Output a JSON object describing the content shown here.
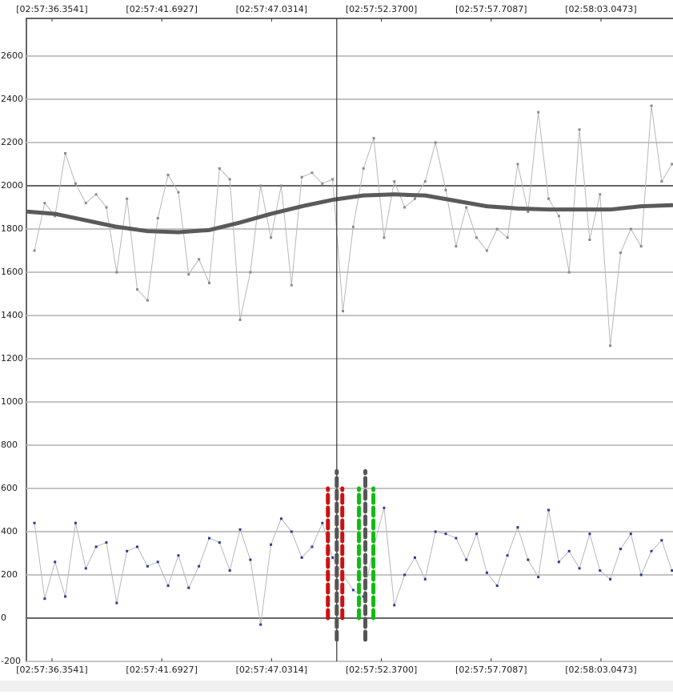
{
  "chart_data": {
    "type": "line",
    "xlim": [
      35.11,
      66.55
    ],
    "ylim": [
      -200,
      2774
    ],
    "xticks": [
      {
        "value": 36.3541,
        "label": "[02:57:36.3541]"
      },
      {
        "value": 41.6927,
        "label": "[02:57:41.6927]"
      },
      {
        "value": 47.0314,
        "label": "[02:57:47.0314]"
      },
      {
        "value": 52.37,
        "label": "[02:57:52.3700]"
      },
      {
        "value": 57.7087,
        "label": "[02:57:57.7087]"
      },
      {
        "value": 63.0473,
        "label": "[02:58:03.0473]"
      }
    ],
    "yticks": [
      -200,
      0,
      200,
      400,
      600,
      800,
      1000,
      1200,
      1400,
      1600,
      1800,
      2000,
      2200,
      2400,
      2600
    ],
    "grid": true,
    "highlight_lines": [
      0,
      2000
    ],
    "cursor_x": 50.2,
    "x": [
      35.5,
      36,
      36.5,
      37,
      37.5,
      38,
      38.5,
      39,
      39.5,
      40,
      40.5,
      41,
      41.5,
      42,
      42.5,
      43,
      43.5,
      44,
      44.5,
      45,
      45.5,
      46,
      46.5,
      47,
      47.5,
      48,
      48.5,
      49,
      49.5,
      50,
      50.5,
      51,
      51.5,
      52,
      52.5,
      53,
      53.5,
      54,
      54.5,
      55,
      55.5,
      56,
      56.5,
      57,
      57.5,
      58,
      58.5,
      59,
      59.5,
      60,
      60.5,
      61,
      61.5,
      62,
      62.5,
      63,
      63.5,
      64,
      64.5,
      65,
      65.5,
      66,
      66.5
    ],
    "series": [
      {
        "color": "#b8b8b8",
        "marker_color": "#8a8a8a",
        "values": [
          1700,
          1920,
          1860,
          2150,
          2010,
          1920,
          1960,
          1900,
          1600,
          1940,
          1520,
          1470,
          1850,
          2050,
          1970,
          1590,
          1660,
          1550,
          2080,
          2030,
          1380,
          1600,
          2000,
          1760,
          2000,
          1540,
          2040,
          2060,
          2010,
          2030,
          1420,
          1810,
          2080,
          2220,
          1760,
          2020,
          1900,
          1940,
          2020,
          2200,
          1980,
          1720,
          1900,
          1760,
          1700,
          1800,
          1760,
          2100,
          1880,
          2340,
          1940,
          1860,
          1600,
          2260,
          1750,
          1960,
          1260,
          1690,
          1800,
          1720,
          2370,
          2020,
          2100
        ]
      },
      {
        "color": "#b8b8b8",
        "marker_color": "#2a3a9a",
        "values": [
          440,
          90,
          260,
          100,
          440,
          230,
          330,
          350,
          70,
          310,
          330,
          240,
          260,
          150,
          290,
          140,
          240,
          370,
          350,
          220,
          410,
          270,
          -30,
          340,
          460,
          400,
          280,
          330,
          440,
          280,
          200,
          130,
          100,
          330,
          510,
          60,
          200,
          280,
          180,
          400,
          390,
          370,
          270,
          390,
          210,
          150,
          290,
          420,
          270,
          190,
          500,
          260,
          310,
          230,
          390,
          220,
          180,
          320,
          390,
          200,
          310,
          360,
          220
        ]
      },
      {
        "color": "#5a5a5a",
        "width": 5,
        "x": [
          35.2,
          36.5,
          38,
          39.5,
          41,
          42.5,
          44,
          45.5,
          47,
          48.5,
          50,
          51.5,
          53,
          54.5,
          56,
          57.5,
          59,
          60.5,
          62,
          63.5,
          65,
          66.5
        ],
        "values": [
          1880,
          1870,
          1840,
          1810,
          1790,
          1785,
          1795,
          1830,
          1870,
          1905,
          1935,
          1955,
          1960,
          1955,
          1930,
          1905,
          1895,
          1890,
          1890,
          1890,
          1905,
          1910
        ]
      }
    ],
    "markers": [
      {
        "x": 49.77,
        "range": [
          0,
          600
        ],
        "color": "#cc1111"
      },
      {
        "x": 50.47,
        "range": [
          0,
          600
        ],
        "color": "#cc1111"
      },
      {
        "x": 50.2,
        "range": [
          -100,
          680
        ],
        "color": "#555555"
      },
      {
        "x": 51.28,
        "range": [
          0,
          600
        ],
        "color": "#11bb11"
      },
      {
        "x": 51.98,
        "range": [
          0,
          600
        ],
        "color": "#11bb11"
      },
      {
        "x": 51.59,
        "range": [
          -100,
          680
        ],
        "color": "#555555"
      }
    ]
  }
}
